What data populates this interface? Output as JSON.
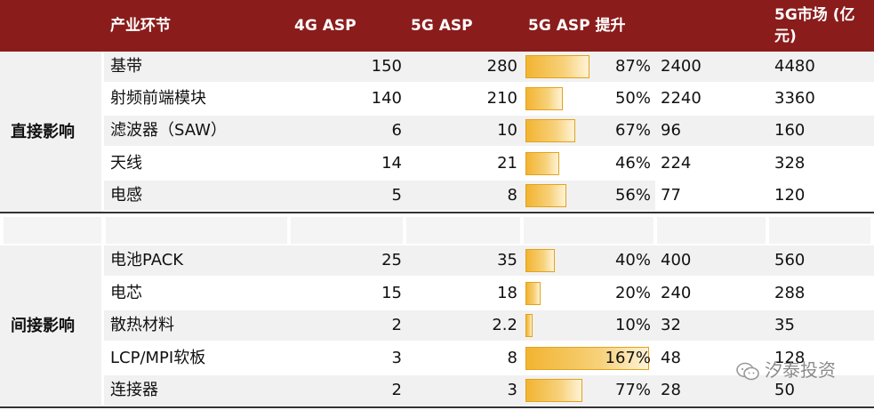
{
  "header": {
    "col_segment": "产业环节",
    "col_4g_asp": "4G ASP",
    "col_5g_asp": "5G ASP",
    "col_asp_increase": "5G ASP 提升",
    "col_5g_market_line1": "5G市场 (亿",
    "col_5g_market_line2": "元)"
  },
  "groups": {
    "direct": "直接影响",
    "indirect": "间接影响"
  },
  "rows": [
    {
      "name": "基带",
      "asp4g": "150",
      "asp5g": "280",
      "increase_pct": "87%",
      "increase": 0.87,
      "col5": "2400",
      "market5g": "4480"
    },
    {
      "name": "射频前端模块",
      "asp4g": "140",
      "asp5g": "210",
      "increase_pct": "50%",
      "increase": 0.5,
      "col5": "2240",
      "market5g": "3360"
    },
    {
      "name": "滤波器（SAW）",
      "asp4g": "6",
      "asp5g": "10",
      "increase_pct": "67%",
      "increase": 0.67,
      "col5": "96",
      "market5g": "160"
    },
    {
      "name": "天线",
      "asp4g": "14",
      "asp5g": "21",
      "increase_pct": "46%",
      "increase": 0.46,
      "col5": "224",
      "market5g": "328"
    },
    {
      "name": "电感",
      "asp4g": "5",
      "asp5g": "8",
      "increase_pct": "56%",
      "increase": 0.56,
      "col5": "77",
      "market5g": "120"
    },
    {
      "name": "电池PACK",
      "asp4g": "25",
      "asp5g": "35",
      "increase_pct": "40%",
      "increase": 0.4,
      "col5": "400",
      "market5g": "560"
    },
    {
      "name": "电芯",
      "asp4g": "15",
      "asp5g": "18",
      "increase_pct": "20%",
      "increase": 0.2,
      "col5": "240",
      "market5g": "288"
    },
    {
      "name": "散热材料",
      "asp4g": "2",
      "asp5g": "2.2",
      "increase_pct": "10%",
      "increase": 0.1,
      "col5": "32",
      "market5g": "35"
    },
    {
      "name": "LCP/MPI软板",
      "asp4g": "3",
      "asp5g": "8",
      "increase_pct": "167%",
      "increase": 1.67,
      "col5": "48",
      "market5g": "128"
    },
    {
      "name": "连接器",
      "asp4g": "2",
      "asp5g": "3",
      "increase_pct": "77%",
      "increase": 0.77,
      "col5": "28",
      "market5g": "50"
    }
  ],
  "watermark": "汐泰投资",
  "colors": {
    "header_bg": "#8b1c1c",
    "bar": "#f2b431",
    "row_alt": "#f1f1f1"
  }
}
